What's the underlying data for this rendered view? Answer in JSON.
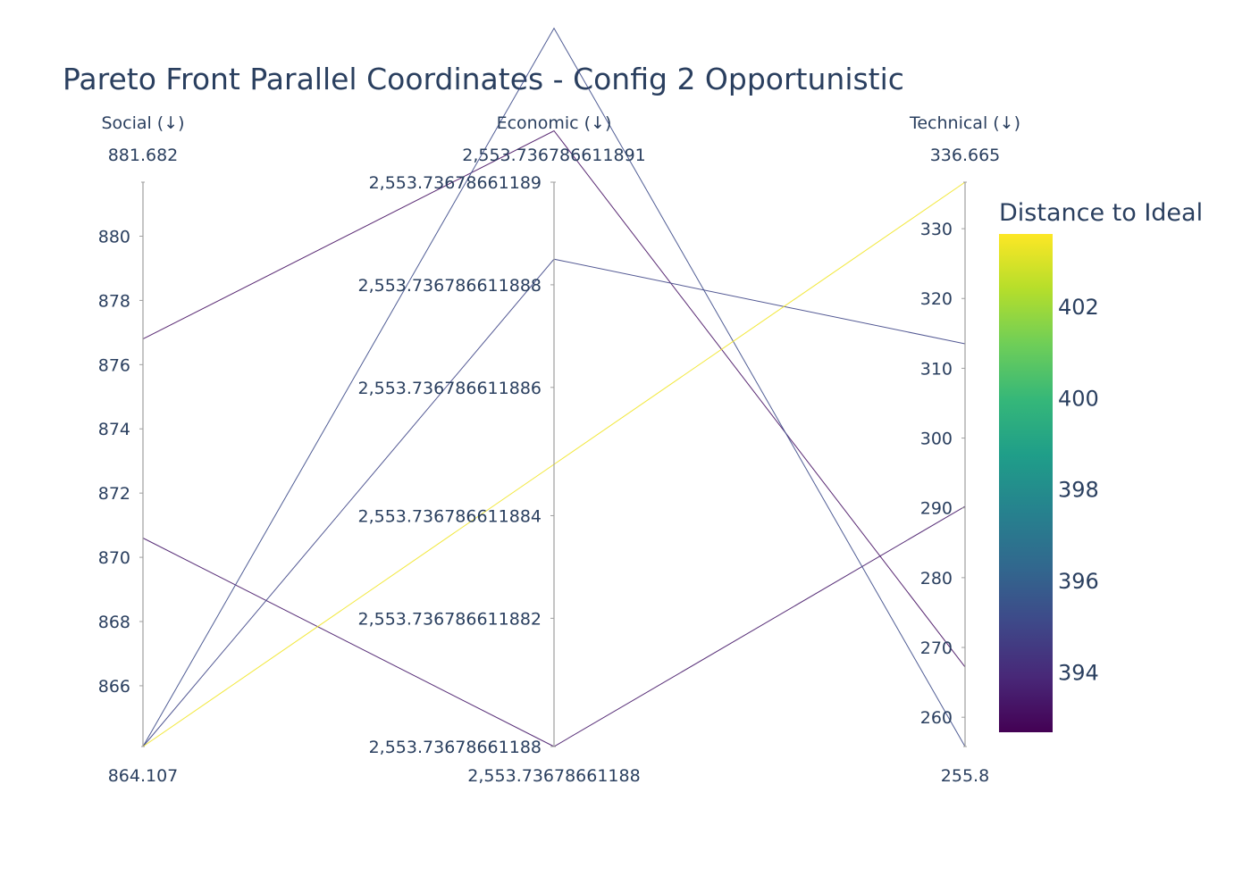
{
  "chart_data": {
    "type": "parallel_coordinates",
    "title": "Pareto Front Parallel Coordinates - Config 2 Opportunistic",
    "axes": [
      {
        "label": "Social (↓)",
        "range_min_label": "864.107",
        "range_max_label": "881.682",
        "range": [
          864.107,
          881.682
        ],
        "ticks": [
          {
            "value": 866,
            "label": "866"
          },
          {
            "value": 868,
            "label": "868"
          },
          {
            "value": 870,
            "label": "870"
          },
          {
            "value": 872,
            "label": "872"
          },
          {
            "value": 874,
            "label": "874"
          },
          {
            "value": 876,
            "label": "876"
          },
          {
            "value": 878,
            "label": "878"
          },
          {
            "value": 880,
            "label": "880"
          }
        ]
      },
      {
        "label": "Economic (↓)",
        "range_min_label": "2,553.73678661188",
        "range_max_label": "2,553.736786611891",
        "range": [
          0,
          11
        ],
        "ticks": [
          {
            "value": 0,
            "label": "2,553.73678661188"
          },
          {
            "value": 2.5,
            "label": "2,553.736786611882"
          },
          {
            "value": 4.5,
            "label": "2,553.736786611884"
          },
          {
            "value": 7,
            "label": "2,553.736786611886"
          },
          {
            "value": 9,
            "label": "2,553.736786611888"
          },
          {
            "value": 11,
            "label": "2,553.73678661189"
          }
        ]
      },
      {
        "label": "Technical (↓)",
        "range_min_label": "255.8",
        "range_max_label": "336.665",
        "range": [
          255.8,
          336.665
        ],
        "ticks": [
          {
            "value": 260,
            "label": "260"
          },
          {
            "value": 270,
            "label": "270"
          },
          {
            "value": 280,
            "label": "280"
          },
          {
            "value": 290,
            "label": "290"
          },
          {
            "value": 300,
            "label": "300"
          },
          {
            "value": 310,
            "label": "310"
          },
          {
            "value": 320,
            "label": "320"
          },
          {
            "value": 330,
            "label": "330"
          }
        ]
      }
    ],
    "solutions": [
      {
        "values": [
          876.8,
          12,
          267.2
        ],
        "distance": 393.2
      },
      {
        "values": [
          870.6,
          0,
          290.2
        ],
        "distance": 393.4
      },
      {
        "values": [
          864.107,
          14,
          255.8
        ],
        "distance": 395.2
      },
      {
        "values": [
          864.107,
          9.5,
          313.5
        ],
        "distance": 395.0
      },
      {
        "values": [
          864.107,
          5.5,
          336.665
        ],
        "distance": 403.4
      }
    ],
    "colorbar": {
      "title": "Distance to Ideal",
      "range": [
        392.7,
        403.6
      ],
      "colorscale": "viridis",
      "ticks": [
        {
          "value": 394,
          "label": "394"
        },
        {
          "value": 396,
          "label": "396"
        },
        {
          "value": 398,
          "label": "398"
        },
        {
          "value": 400,
          "label": "400"
        },
        {
          "value": 402,
          "label": "402"
        }
      ]
    },
    "colors": {
      "text": "#2a3f5f",
      "axis": "#9e9e9e"
    }
  }
}
